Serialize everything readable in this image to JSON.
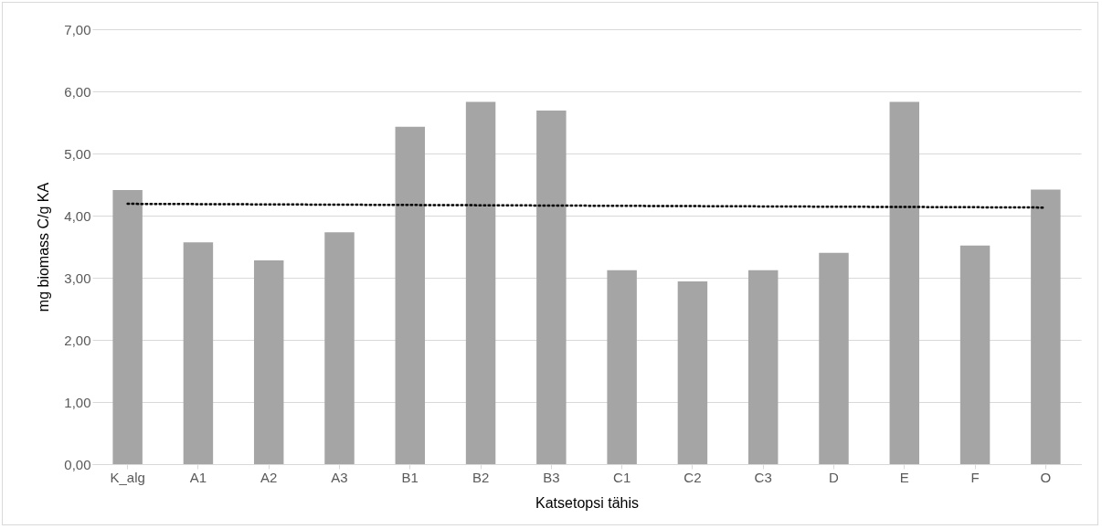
{
  "chart_data": {
    "type": "bar",
    "xlabel": "Katsetopsi tähis",
    "ylabel": "mg biomass C/g KA",
    "categories": [
      "K_alg",
      "A1",
      "A2",
      "A3",
      "B1",
      "B2",
      "B3",
      "C1",
      "C2",
      "C3",
      "D",
      "E",
      "F",
      "O"
    ],
    "series": [
      {
        "color": "#a5a5a5",
        "values": [
          4.41,
          3.57,
          3.28,
          3.73,
          5.43,
          5.83,
          5.69,
          3.12,
          2.94,
          3.12,
          3.4,
          5.83,
          3.52,
          4.42
        ]
      },
      {
        "type": "line",
        "color": "#000000",
        "line_style": "dotted",
        "x": [
          "K_alg",
          "O"
        ],
        "values": [
          4.19,
          4.13
        ]
      }
    ],
    "ylim": [
      0,
      7
    ],
    "yticks": [
      {
        "value": 0,
        "label": "0,00"
      },
      {
        "value": 1,
        "label": "1,00"
      },
      {
        "value": 2,
        "label": "2,00"
      },
      {
        "value": 3,
        "label": "3,00"
      },
      {
        "value": 4,
        "label": "4,00"
      },
      {
        "value": 5,
        "label": "5,00"
      },
      {
        "value": 6,
        "label": "6,00"
      },
      {
        "value": 7,
        "label": "7,00"
      }
    ],
    "grid": "y"
  }
}
